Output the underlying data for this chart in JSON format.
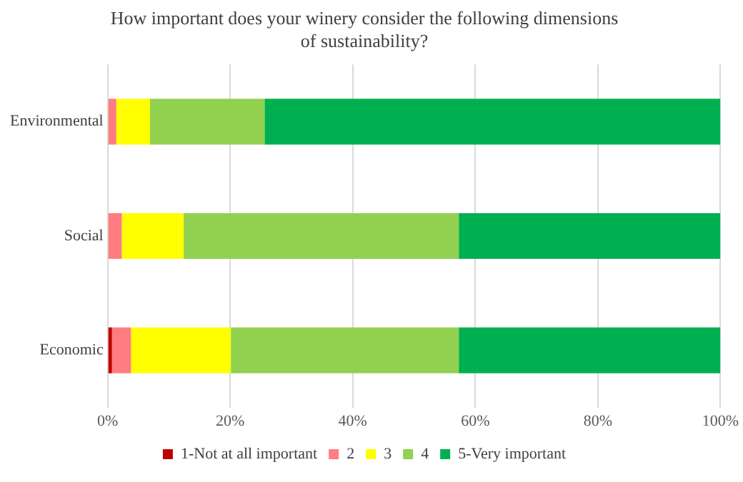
{
  "chart_data": {
    "type": "bar",
    "orientation": "horizontal",
    "stacked": true,
    "title": "How important does your winery consider the following dimensions of sustainability?",
    "categories": [
      "Environmental",
      "Social",
      "Economic"
    ],
    "series": [
      {
        "name": "1-Not at all important",
        "color": "#c00000",
        "values": [
          0,
          0,
          0.7
        ]
      },
      {
        "name": "2",
        "color": "#ff7c80",
        "values": [
          1.4,
          2.3,
          3.1
        ]
      },
      {
        "name": "3",
        "color": "#ffff00",
        "values": [
          5.5,
          10.1,
          16.3
        ]
      },
      {
        "name": "4",
        "color": "#92d050",
        "values": [
          18.7,
          44.9,
          37.2
        ]
      },
      {
        "name": "5-Very important",
        "color": "#00b050",
        "values": [
          74.4,
          42.7,
          42.7
        ]
      }
    ],
    "xlim": [
      0,
      100
    ],
    "xticks": [
      {
        "value": 0,
        "label": "0%"
      },
      {
        "value": 20,
        "label": "20%"
      },
      {
        "value": 40,
        "label": "40%"
      },
      {
        "value": 60,
        "label": "60%"
      },
      {
        "value": 80,
        "label": "80%"
      },
      {
        "value": 100,
        "label": "100%"
      }
    ],
    "grid": "x",
    "legend": "bottom"
  }
}
